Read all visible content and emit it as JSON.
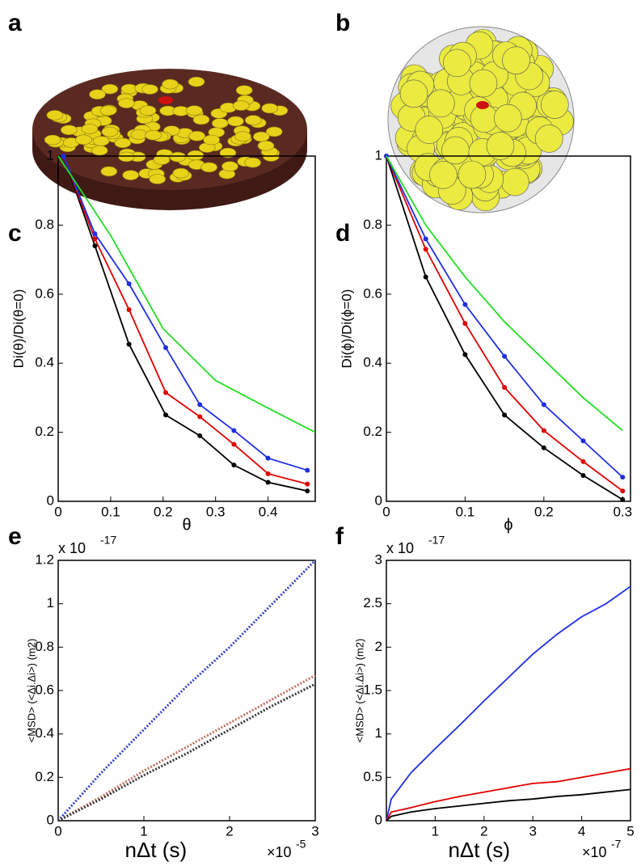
{
  "panel_labels": [
    "a",
    "b",
    "c",
    "d",
    "e",
    "f"
  ],
  "chart_data": [
    {
      "type": "line",
      "xlabel": "θ",
      "ylabel": "Di(θ)/Di(θ=0)",
      "xlim": [
        0,
        0.49
      ],
      "ylim": [
        0,
        1
      ],
      "xticks": [
        0,
        0.1,
        0.2,
        0.3,
        0.4
      ],
      "yticks": [
        0,
        0.2,
        0.4,
        0.6,
        0.8,
        1
      ],
      "series": [
        {
          "color": "#000000",
          "markers": true,
          "dash": false,
          "x": [
            0.01,
            0.07,
            0.135,
            0.205,
            0.27,
            0.335,
            0.4,
            0.475
          ],
          "values": [
            1,
            0.74,
            0.455,
            0.25,
            0.19,
            0.105,
            0.055,
            0.03
          ]
        },
        {
          "color": "#e00000",
          "markers": true,
          "dash": false,
          "x": [
            0.01,
            0.07,
            0.135,
            0.205,
            0.27,
            0.335,
            0.4,
            0.475
          ],
          "values": [
            1,
            0.76,
            0.555,
            0.315,
            0.245,
            0.165,
            0.08,
            0.05
          ]
        },
        {
          "color": "#1f2fe0",
          "markers": true,
          "dash": false,
          "x": [
            0.01,
            0.07,
            0.135,
            0.205,
            0.27,
            0.335,
            0.4,
            0.475
          ],
          "values": [
            1,
            0.775,
            0.63,
            0.445,
            0.28,
            0.205,
            0.125,
            0.09
          ]
        },
        {
          "color": "#22dd22",
          "markers": false,
          "dash": false,
          "x": [
            0,
            0.1,
            0.2,
            0.3,
            0.4,
            0.49
          ],
          "values": [
            1,
            0.77,
            0.5,
            0.35,
            0.27,
            0.2
          ]
        }
      ]
    },
    {
      "type": "line",
      "xlabel": "ϕ",
      "ylabel": "Di(ϕ)/Di(ϕ=0)",
      "xlim": [
        0,
        0.31
      ],
      "ylim": [
        0,
        1
      ],
      "xticks": [
        0,
        0.1,
        0.2,
        0.3
      ],
      "yticks": [
        0,
        0.2,
        0.4,
        0.6,
        0.8,
        1
      ],
      "series": [
        {
          "color": "#000000",
          "markers": true,
          "dash": false,
          "x": [
            0,
            0.05,
            0.1,
            0.15,
            0.2,
            0.25,
            0.3
          ],
          "values": [
            1,
            0.65,
            0.425,
            0.25,
            0.155,
            0.075,
            0.005
          ]
        },
        {
          "color": "#e00000",
          "markers": true,
          "dash": false,
          "x": [
            0,
            0.05,
            0.1,
            0.15,
            0.2,
            0.25,
            0.3
          ],
          "values": [
            1,
            0.73,
            0.515,
            0.33,
            0.205,
            0.115,
            0.03
          ]
        },
        {
          "color": "#1f2fe0",
          "markers": true,
          "dash": false,
          "x": [
            0,
            0.05,
            0.1,
            0.15,
            0.2,
            0.25,
            0.3
          ],
          "values": [
            1,
            0.76,
            0.57,
            0.42,
            0.28,
            0.175,
            0.07
          ]
        },
        {
          "color": "#22dd22",
          "markers": false,
          "dash": false,
          "x": [
            0,
            0.05,
            0.1,
            0.15,
            0.2,
            0.25,
            0.3
          ],
          "values": [
            1,
            0.8,
            0.65,
            0.52,
            0.41,
            0.3,
            0.205
          ]
        }
      ]
    },
    {
      "type": "line",
      "xlabel": "nΔt (s)",
      "ylabel": "<MSD> (<Δi.Δi>) (m2)",
      "y_multiplier": {
        "base": "x 10",
        "exponent": "-17"
      },
      "x_multiplier": {
        "base": "×10",
        "exponent": "-5"
      },
      "xlim": [
        0,
        3
      ],
      "ylim": [
        0,
        1.2
      ],
      "xticks": [
        0,
        1,
        2,
        3
      ],
      "yticks": [
        0,
        0.2,
        0.4,
        0.6,
        0.8,
        1,
        1.2
      ],
      "series": [
        {
          "color": "#3a44c8",
          "markers": false,
          "dash": true,
          "x": [
            0,
            0.5,
            1,
            1.5,
            2,
            2.5,
            3
          ],
          "values": [
            0,
            0.22,
            0.42,
            0.62,
            0.8,
            1.0,
            1.2
          ]
        },
        {
          "color": "#c47060",
          "markers": false,
          "dash": true,
          "x": [
            0,
            0.5,
            1,
            1.5,
            2,
            2.5,
            3
          ],
          "values": [
            0,
            0.11,
            0.23,
            0.34,
            0.45,
            0.56,
            0.67
          ]
        },
        {
          "color": "#333333",
          "markers": false,
          "dash": true,
          "x": [
            0,
            0.5,
            1,
            1.5,
            2,
            2.5,
            3
          ],
          "values": [
            0,
            0.1,
            0.21,
            0.31,
            0.42,
            0.53,
            0.63
          ]
        }
      ]
    },
    {
      "type": "line",
      "xlabel": "nΔt (s)",
      "ylabel": "<MSD> (<Δi.Δi>) (m2)",
      "y_multiplier": {
        "base": "x 10",
        "exponent": "-17"
      },
      "x_multiplier": {
        "base": "×10",
        "exponent": "-7"
      },
      "xlim": [
        0,
        5
      ],
      "ylim": [
        0,
        3
      ],
      "xticks": [
        1,
        2,
        3,
        4,
        5
      ],
      "yticks": [
        0,
        0.5,
        1,
        1.5,
        2,
        2.5,
        3
      ],
      "series": [
        {
          "color": "#1f2fe0",
          "markers": false,
          "dash": false,
          "x": [
            0,
            0.1,
            0.5,
            1,
            1.5,
            2,
            2.5,
            3,
            3.5,
            4,
            4.5,
            5
          ],
          "values": [
            0,
            0.25,
            0.55,
            0.83,
            1.1,
            1.38,
            1.65,
            1.92,
            2.15,
            2.35,
            2.5,
            2.7
          ]
        },
        {
          "color": "#e00000",
          "markers": false,
          "dash": false,
          "x": [
            0,
            0.1,
            0.5,
            1,
            1.5,
            2,
            2.5,
            3,
            3.5,
            4,
            4.5,
            5
          ],
          "values": [
            0,
            0.1,
            0.15,
            0.22,
            0.28,
            0.33,
            0.38,
            0.43,
            0.45,
            0.5,
            0.55,
            0.6
          ]
        },
        {
          "color": "#000000",
          "markers": false,
          "dash": false,
          "x": [
            0,
            0.1,
            0.5,
            1,
            1.5,
            2,
            2.5,
            3,
            3.5,
            4,
            4.5,
            5
          ],
          "values": [
            0,
            0.05,
            0.1,
            0.14,
            0.17,
            0.2,
            0.23,
            0.25,
            0.28,
            0.3,
            0.33,
            0.36
          ]
        }
      ]
    }
  ]
}
